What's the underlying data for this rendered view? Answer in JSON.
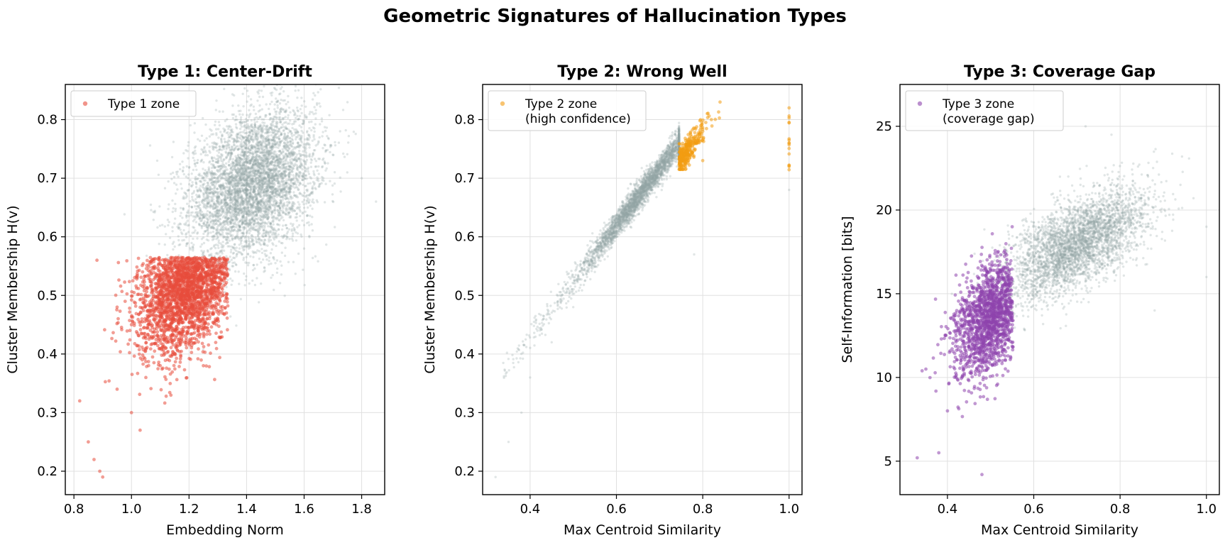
{
  "suptitle": "Geometric Signatures of Hallucination Types",
  "colors": {
    "background_points": "#95a5a6",
    "type1": "#e74c3c",
    "type2": "#f39c12",
    "type3": "#8e44ad"
  },
  "chart_data": [
    {
      "type": "scatter",
      "title": "Type 1: Center-Drift",
      "xlabel": "Embedding Norm",
      "ylabel": "Cluster Membership H(v)",
      "xlim": [
        0.77,
        1.88
      ],
      "ylim": [
        0.16,
        0.86
      ],
      "xticks": [
        0.8,
        1.0,
        1.2,
        1.4,
        1.6,
        1.8
      ],
      "xtick_labels": [
        "0.8",
        "1.0",
        "1.2",
        "1.4",
        "1.6",
        "1.8"
      ],
      "yticks": [
        0.2,
        0.3,
        0.4,
        0.5,
        0.6,
        0.7,
        0.8
      ],
      "ytick_labels": [
        "0.2",
        "0.3",
        "0.4",
        "0.5",
        "0.6",
        "0.7",
        "0.8"
      ],
      "grid": true,
      "legend_position": "upper left",
      "legend": [
        {
          "label": "Type 1 zone",
          "color": "#e74c3c"
        }
      ],
      "series": [
        {
          "role": "background",
          "color": "#95a5a6",
          "points": [
            [
              1.25,
              0.56
            ],
            [
              1.3,
              0.6
            ],
            [
              1.35,
              0.63
            ],
            [
              1.4,
              0.66
            ],
            [
              1.45,
              0.7
            ],
            [
              1.5,
              0.72
            ],
            [
              1.55,
              0.68
            ],
            [
              1.6,
              0.62
            ],
            [
              1.45,
              0.78
            ],
            [
              1.38,
              0.8
            ],
            [
              1.3,
              0.72
            ],
            [
              1.2,
              0.62
            ],
            [
              1.65,
              0.72
            ],
            [
              1.7,
              0.74
            ],
            [
              1.75,
              0.71
            ],
            [
              1.8,
              0.7
            ],
            [
              1.85,
              0.66
            ],
            [
              1.45,
              0.52
            ],
            [
              1.6,
              0.58
            ],
            [
              1.35,
              0.55
            ]
          ]
        },
        {
          "name": "Type 1 zone",
          "color": "#e74c3c",
          "points": [
            [
              0.82,
              0.32
            ],
            [
              0.85,
              0.25
            ],
            [
              0.87,
              0.22
            ],
            [
              0.89,
              0.2
            ],
            [
              0.9,
              0.19
            ],
            [
              0.95,
              0.34
            ],
            [
              1.0,
              0.3
            ],
            [
              1.03,
              0.27
            ],
            [
              1.05,
              0.36
            ],
            [
              1.1,
              0.38
            ],
            [
              1.15,
              0.4
            ],
            [
              1.2,
              0.42
            ],
            [
              1.25,
              0.38
            ],
            [
              1.0,
              0.45
            ],
            [
              1.05,
              0.5
            ],
            [
              1.1,
              0.53
            ],
            [
              1.15,
              0.55
            ],
            [
              1.2,
              0.56
            ],
            [
              1.25,
              0.54
            ],
            [
              1.3,
              0.5
            ],
            [
              1.33,
              0.47
            ],
            [
              0.88,
              0.56
            ],
            [
              0.95,
              0.48
            ],
            [
              1.2,
              0.48
            ]
          ]
        }
      ]
    },
    {
      "type": "scatter",
      "title": "Type 2: Wrong Well",
      "xlabel": "Max Centroid Similarity",
      "ylabel": "Cluster Membership H(v)",
      "xlim": [
        0.29,
        1.03
      ],
      "ylim": [
        0.16,
        0.86
      ],
      "xticks": [
        0.4,
        0.6,
        0.8,
        1.0
      ],
      "xtick_labels": [
        "0.4",
        "0.6",
        "0.8",
        "1.0"
      ],
      "yticks": [
        0.2,
        0.3,
        0.4,
        0.5,
        0.6,
        0.7,
        0.8
      ],
      "ytick_labels": [
        "0.2",
        "0.3",
        "0.4",
        "0.5",
        "0.6",
        "0.7",
        "0.8"
      ],
      "grid": true,
      "legend_position": "upper left",
      "legend": [
        {
          "label": "Type 2 zone\n(high confidence)",
          "color": "#f39c12"
        }
      ],
      "series": [
        {
          "role": "background",
          "color": "#95a5a6",
          "points": [
            [
              0.32,
              0.19
            ],
            [
              0.35,
              0.25
            ],
            [
              0.38,
              0.3
            ],
            [
              0.4,
              0.36
            ],
            [
              0.45,
              0.42
            ],
            [
              0.5,
              0.48
            ],
            [
              0.55,
              0.54
            ],
            [
              0.6,
              0.6
            ],
            [
              0.65,
              0.65
            ],
            [
              0.7,
              0.69
            ],
            [
              0.74,
              0.72
            ],
            [
              0.78,
              0.57
            ],
            [
              1.0,
              0.68
            ]
          ]
        },
        {
          "name": "Type 2 zone\n(high confidence)",
          "color": "#f39c12",
          "points": [
            [
              0.75,
              0.73
            ],
            [
              0.76,
              0.72
            ],
            [
              0.78,
              0.75
            ],
            [
              0.8,
              0.78
            ],
            [
              0.82,
              0.8
            ],
            [
              0.84,
              0.83
            ],
            [
              0.8,
              0.73
            ],
            [
              1.0,
              0.82
            ],
            [
              1.0,
              0.76
            ],
            [
              1.0,
              0.72
            ]
          ]
        }
      ]
    },
    {
      "type": "scatter",
      "title": "Type 3: Coverage Gap",
      "xlabel": "Max Centroid Similarity",
      "ylabel": "Self-Information [bits]",
      "xlim": [
        0.29,
        1.03
      ],
      "ylim": [
        3.0,
        27.5
      ],
      "xticks": [
        0.4,
        0.6,
        0.8,
        1.0
      ],
      "xtick_labels": [
        "0.4",
        "0.6",
        "0.8",
        "1.0"
      ],
      "yticks": [
        5,
        10,
        15,
        20,
        25
      ],
      "ytick_labels": [
        "5",
        "10",
        "15",
        "20",
        "25"
      ],
      "grid": true,
      "legend_position": "upper left",
      "legend": [
        {
          "label": "Type 3 zone\n(coverage gap)",
          "color": "#8e44ad"
        }
      ],
      "series": [
        {
          "role": "background",
          "color": "#95a5a6",
          "points": [
            [
              0.55,
              14
            ],
            [
              0.6,
              15.5
            ],
            [
              0.65,
              17
            ],
            [
              0.7,
              18
            ],
            [
              0.75,
              19
            ],
            [
              0.8,
              18.5
            ],
            [
              0.85,
              19.5
            ],
            [
              0.68,
              22
            ],
            [
              0.72,
              25
            ],
            [
              0.88,
              14
            ],
            [
              0.78,
              24.5
            ],
            [
              1.0,
              19
            ],
            [
              1.0,
              16
            ]
          ]
        },
        {
          "name": "Type 3 zone\n(coverage gap)",
          "color": "#8e44ad",
          "points": [
            [
              0.33,
              5.2
            ],
            [
              0.38,
              5.5
            ],
            [
              0.4,
              8
            ],
            [
              0.42,
              10
            ],
            [
              0.45,
              11
            ],
            [
              0.48,
              12.5
            ],
            [
              0.5,
              13.5
            ],
            [
              0.52,
              14.5
            ],
            [
              0.54,
              16.5
            ],
            [
              0.55,
              19
            ],
            [
              0.48,
              4.2
            ],
            [
              0.35,
              10.5
            ]
          ]
        }
      ]
    }
  ]
}
